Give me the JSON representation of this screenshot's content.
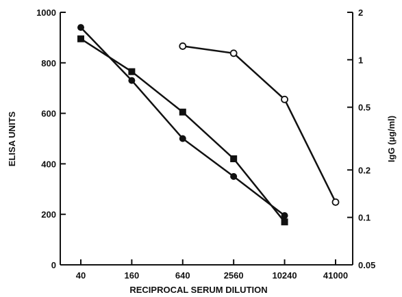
{
  "chart_data": {
    "type": "line",
    "title": "",
    "xlabel": "RECIPROCAL SERUM DILUTION",
    "ylabel": "ELISA UNITS",
    "y2label": "IgG (µg/ml)",
    "x_scale": "log",
    "x": [
      40,
      160,
      640,
      2560,
      10240,
      41000
    ],
    "x_tick_labels": [
      "40",
      "160",
      "640",
      "2560",
      "10240",
      "41000"
    ],
    "ylim": [
      0,
      1000
    ],
    "y_ticks": [
      0,
      200,
      400,
      600,
      800,
      1000
    ],
    "y_tick_labels": [
      "0",
      "200",
      "400",
      "600",
      "800",
      "1000"
    ],
    "y2_scale": "log",
    "y2lim": [
      0.05,
      2
    ],
    "y2_ticks": [
      0.05,
      0.1,
      0.2,
      0.5,
      1,
      2
    ],
    "y2_tick_labels": [
      "0.05",
      "0.1",
      "0.2",
      "0.5",
      "1",
      "2"
    ],
    "grid": false,
    "series": [
      {
        "marker": "filled-circle",
        "axis": "left",
        "points": [
          [
            40,
            940
          ],
          [
            160,
            730
          ],
          [
            640,
            500
          ],
          [
            2560,
            350
          ],
          [
            10240,
            195
          ]
        ]
      },
      {
        "marker": "filled-square",
        "axis": "left",
        "points": [
          [
            40,
            895
          ],
          [
            160,
            765
          ],
          [
            640,
            605
          ],
          [
            2560,
            420
          ],
          [
            10240,
            170
          ]
        ]
      },
      {
        "marker": "open-circle",
        "axis": "right",
        "points": [
          [
            640,
            1.22
          ],
          [
            2560,
            1.1
          ],
          [
            10240,
            0.56
          ],
          [
            41000,
            0.125
          ]
        ]
      }
    ]
  }
}
